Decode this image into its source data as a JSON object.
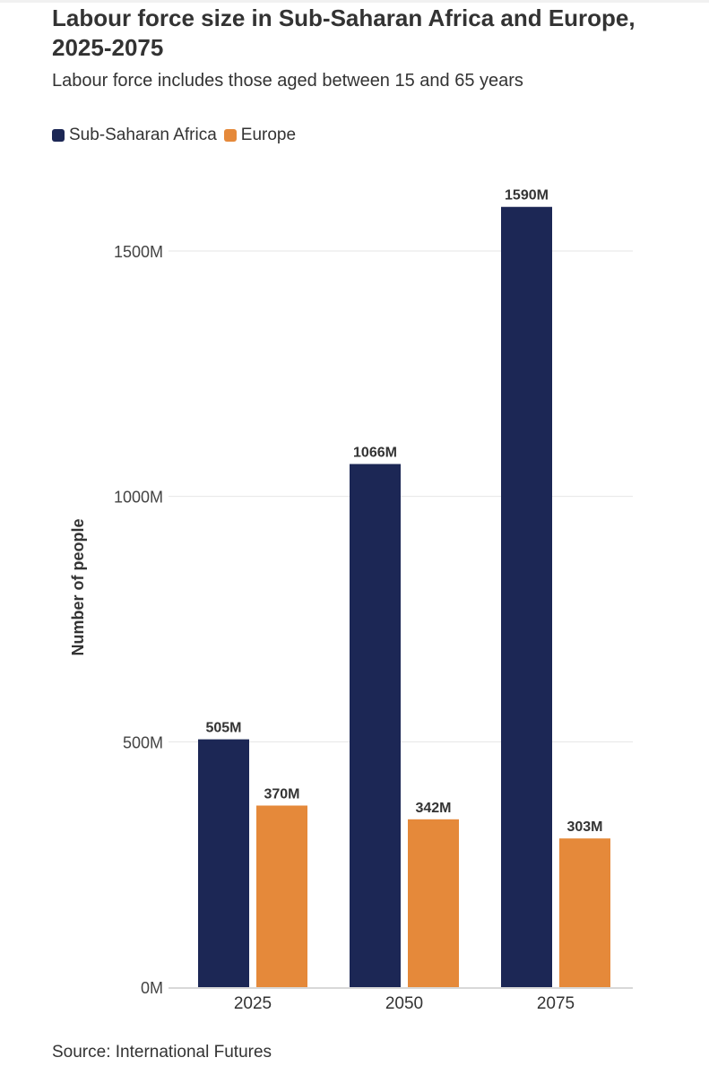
{
  "header": {
    "title": "Labour force size in Sub-Saharan Africa and Europe, 2025-2075",
    "subtitle": "Labour force includes those aged between 15 and 65 years"
  },
  "legend": [
    {
      "label": "Sub-Saharan Africa",
      "color": "#1c2755"
    },
    {
      "label": "Europe",
      "color": "#e5893a"
    }
  ],
  "footer": {
    "source": "Source: International Futures"
  },
  "chart_data": {
    "type": "bar",
    "title": "Labour force size in Sub-Saharan Africa and Europe, 2025-2075",
    "subtitle": "Labour force includes those aged between 15 and 65 years",
    "xlabel": "",
    "ylabel": "Number of people",
    "categories": [
      "2025",
      "2050",
      "2075"
    ],
    "series": [
      {
        "name": "Sub-Saharan Africa",
        "values": [
          505,
          1066,
          1590
        ],
        "labels": [
          "505M",
          "1066M",
          "1590M"
        ],
        "color": "#1c2755"
      },
      {
        "name": "Europe",
        "values": [
          370,
          342,
          303
        ],
        "labels": [
          "370M",
          "342M",
          "303M"
        ],
        "color": "#e5893a"
      }
    ],
    "ylim": [
      0,
      1650
    ],
    "yticks": [
      0,
      500,
      1000,
      1500
    ],
    "ytick_labels": [
      "0M",
      "500M",
      "1000M",
      "1500M"
    ],
    "grid": true,
    "legend_position": "top-left"
  }
}
